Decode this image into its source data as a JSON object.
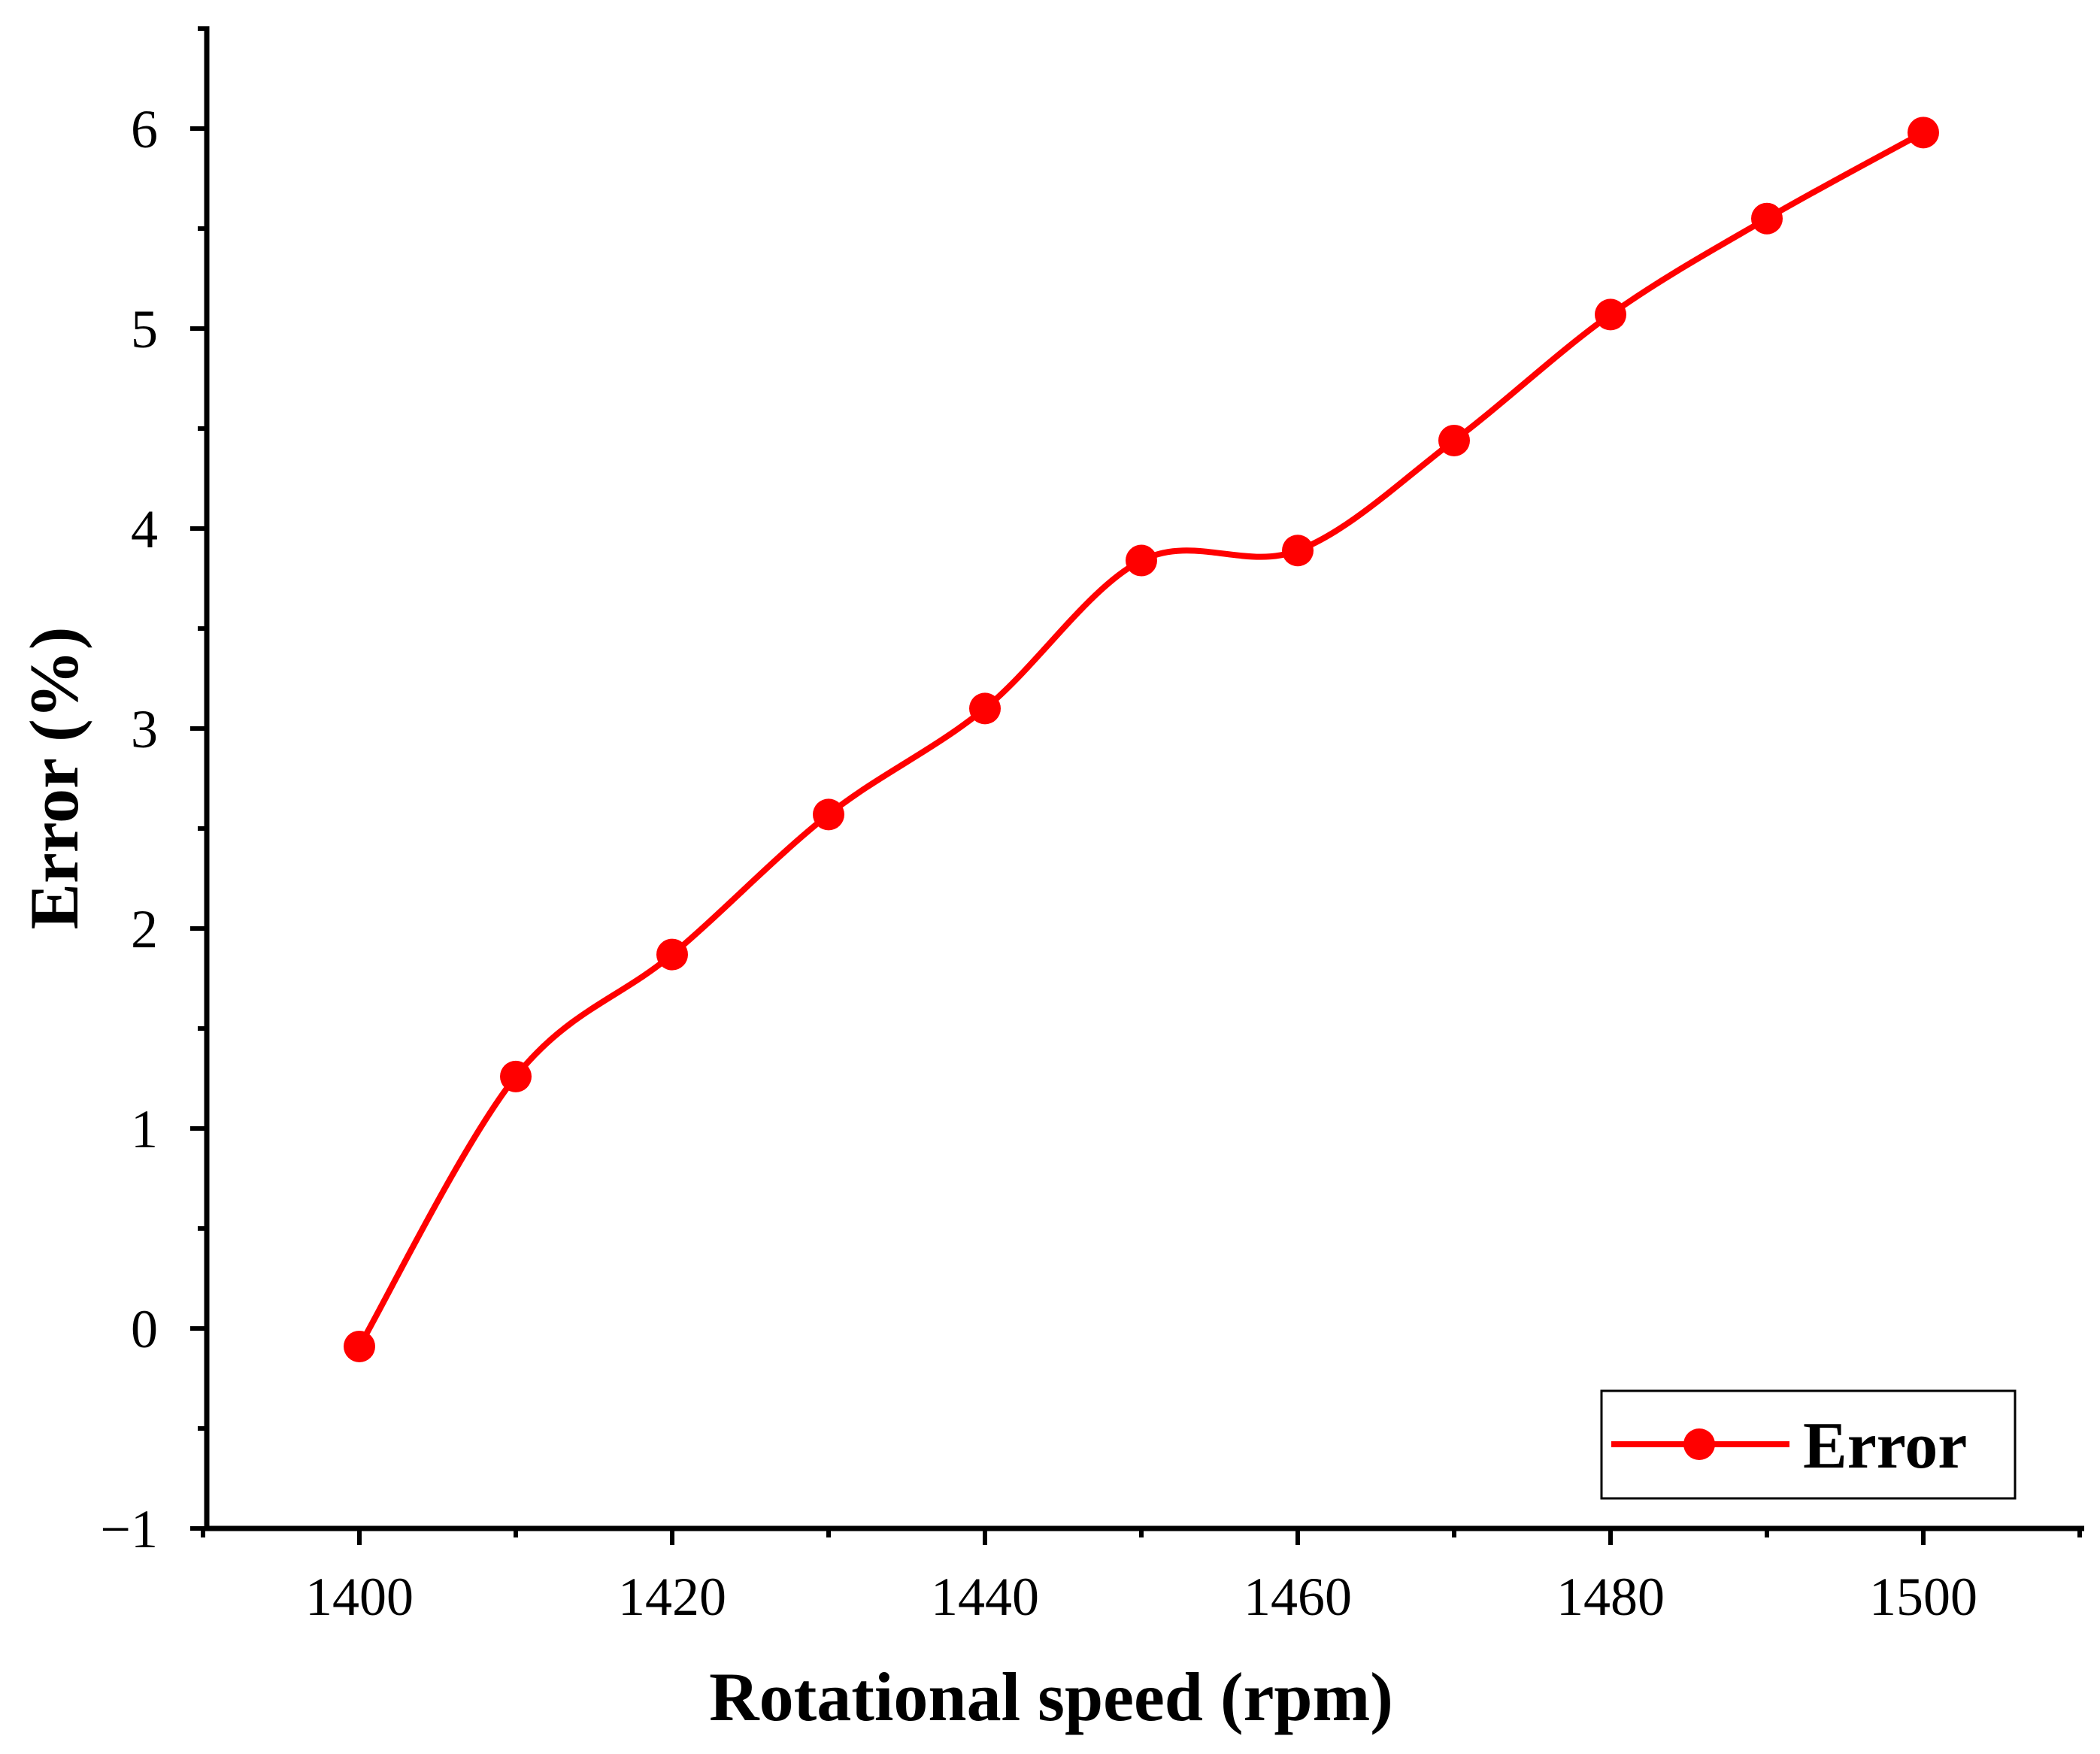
{
  "chart_data": {
    "type": "line",
    "title": "",
    "xlabel": "Rotational speed (rpm)",
    "ylabel": "Error (%)",
    "xlim": [
      1390,
      1510
    ],
    "ylim": [
      -1,
      6.5
    ],
    "x_ticks": [
      1400,
      1420,
      1440,
      1460,
      1480,
      1500
    ],
    "x_tick_labels": [
      "1400",
      "1420",
      "1440",
      "1460",
      "1480",
      "1500"
    ],
    "y_ticks": [
      -1,
      0,
      1,
      2,
      3,
      4,
      5,
      6
    ],
    "y_tick_labels": [
      "−1",
      "0",
      "1",
      "2",
      "3",
      "4",
      "5",
      "6"
    ],
    "grid": false,
    "legend_position": "bottom-right",
    "series": [
      {
        "name": "Error",
        "color": "#ff0000",
        "marker": "circle",
        "x": [
          1400,
          1410,
          1420,
          1430,
          1440,
          1450,
          1460,
          1470,
          1480,
          1490,
          1500
        ],
        "y": [
          -0.09,
          1.26,
          1.87,
          2.57,
          3.1,
          3.84,
          3.89,
          4.44,
          5.07,
          5.55,
          5.98
        ]
      }
    ]
  }
}
